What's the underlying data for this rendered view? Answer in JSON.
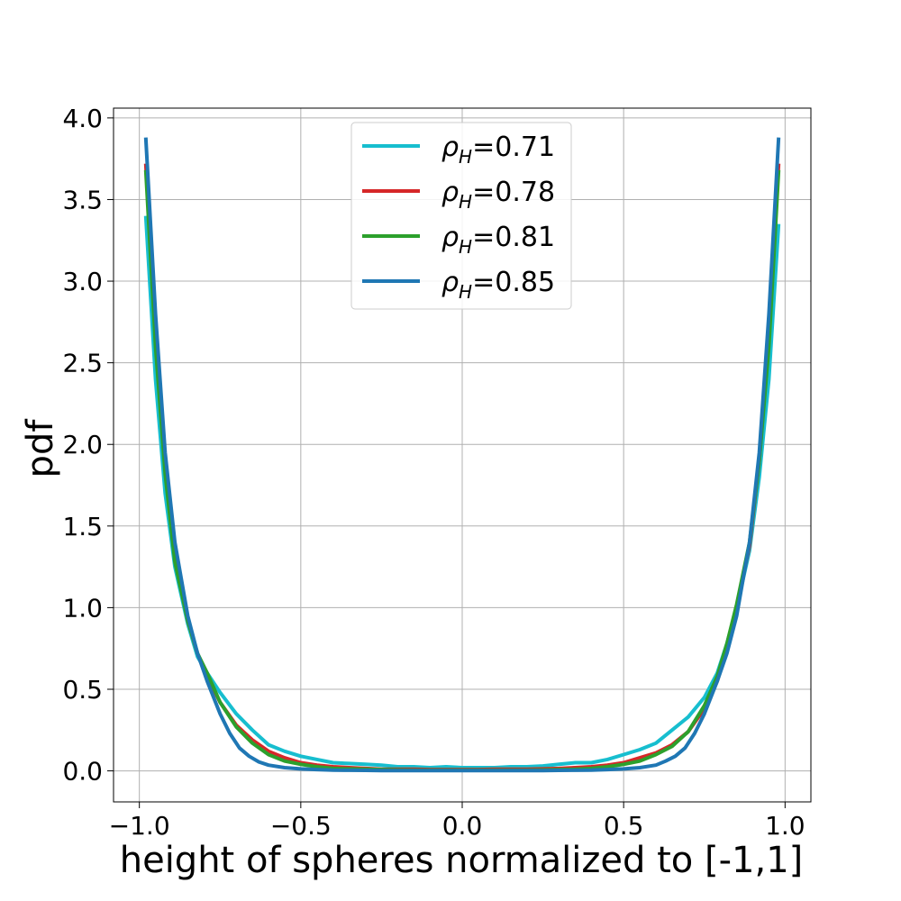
{
  "chart_data": {
    "type": "line",
    "xlabel": "height of spheres normalized to [-1,1]",
    "ylabel": "pdf",
    "xlim": [
      -1.08,
      1.08
    ],
    "ylim": [
      -0.19,
      4.06
    ],
    "xticks": [
      -1.0,
      -0.5,
      0.0,
      0.5,
      1.0
    ],
    "xtick_labels": [
      "−1.0",
      "−0.5",
      "0.0",
      "0.5",
      "1.0"
    ],
    "yticks": [
      0.0,
      0.5,
      1.0,
      1.5,
      2.0,
      2.5,
      3.0,
      3.5,
      4.0
    ],
    "ytick_labels": [
      "0.0",
      "0.5",
      "1.0",
      "1.5",
      "2.0",
      "2.5",
      "3.0",
      "3.5",
      "4.0"
    ],
    "grid": true,
    "legend_position": "top-center",
    "series": [
      {
        "name": "=0.71",
        "symbol": "ρ",
        "subscript": "H",
        "color": "#17becf",
        "x": [
          -0.98,
          -0.95,
          -0.92,
          -0.89,
          -0.85,
          -0.82,
          -0.79,
          -0.75,
          -0.7,
          -0.65,
          -0.6,
          -0.55,
          -0.5,
          -0.45,
          -0.4,
          -0.35,
          -0.3,
          -0.25,
          -0.2,
          -0.15,
          -0.1,
          -0.05,
          0.0,
          0.05,
          0.1,
          0.15,
          0.2,
          0.25,
          0.3,
          0.35,
          0.4,
          0.45,
          0.5,
          0.55,
          0.6,
          0.65,
          0.7,
          0.75,
          0.79,
          0.82,
          0.85,
          0.89,
          0.92,
          0.95,
          0.98
        ],
        "y": [
          3.4,
          2.4,
          1.7,
          1.25,
          0.9,
          0.7,
          0.6,
          0.48,
          0.35,
          0.25,
          0.16,
          0.12,
          0.09,
          0.07,
          0.05,
          0.045,
          0.04,
          0.035,
          0.025,
          0.025,
          0.02,
          0.025,
          0.02,
          0.02,
          0.02,
          0.025,
          0.025,
          0.03,
          0.04,
          0.05,
          0.05,
          0.07,
          0.1,
          0.13,
          0.17,
          0.25,
          0.33,
          0.45,
          0.6,
          0.78,
          1.0,
          1.35,
          1.8,
          2.4,
          3.35
        ]
      },
      {
        "name": "=0.78",
        "symbol": "ρ",
        "subscript": "H",
        "color": "#d62728",
        "x": [
          -0.98,
          -0.95,
          -0.92,
          -0.89,
          -0.85,
          -0.82,
          -0.79,
          -0.75,
          -0.7,
          -0.65,
          -0.6,
          -0.55,
          -0.5,
          -0.45,
          -0.4,
          -0.35,
          -0.3,
          -0.25,
          -0.2,
          -0.15,
          -0.1,
          -0.05,
          0.0,
          0.05,
          0.1,
          0.15,
          0.2,
          0.25,
          0.3,
          0.35,
          0.4,
          0.45,
          0.5,
          0.55,
          0.6,
          0.65,
          0.7,
          0.75,
          0.79,
          0.82,
          0.85,
          0.89,
          0.92,
          0.95,
          0.98
        ],
        "y": [
          3.72,
          2.65,
          1.85,
          1.3,
          0.92,
          0.72,
          0.58,
          0.42,
          0.28,
          0.19,
          0.12,
          0.08,
          0.05,
          0.035,
          0.025,
          0.02,
          0.015,
          0.01,
          0.01,
          0.01,
          0.008,
          0.008,
          0.008,
          0.008,
          0.01,
          0.01,
          0.01,
          0.012,
          0.015,
          0.02,
          0.025,
          0.035,
          0.05,
          0.08,
          0.11,
          0.16,
          0.24,
          0.38,
          0.55,
          0.75,
          1.0,
          1.38,
          1.9,
          2.65,
          3.72
        ]
      },
      {
        "name": "=0.81",
        "symbol": "ρ",
        "subscript": "H",
        "color": "#2ca02c",
        "x": [
          -0.98,
          -0.95,
          -0.92,
          -0.89,
          -0.85,
          -0.82,
          -0.79,
          -0.75,
          -0.7,
          -0.65,
          -0.6,
          -0.55,
          -0.5,
          -0.45,
          -0.4,
          -0.35,
          -0.3,
          -0.25,
          -0.2,
          -0.15,
          -0.1,
          -0.05,
          0.0,
          0.05,
          0.1,
          0.15,
          0.2,
          0.25,
          0.3,
          0.35,
          0.4,
          0.45,
          0.5,
          0.55,
          0.6,
          0.65,
          0.7,
          0.75,
          0.79,
          0.82,
          0.85,
          0.89,
          0.92,
          0.95,
          0.98
        ],
        "y": [
          3.68,
          2.6,
          1.82,
          1.28,
          0.92,
          0.72,
          0.6,
          0.42,
          0.27,
          0.17,
          0.1,
          0.06,
          0.04,
          0.025,
          0.015,
          0.012,
          0.01,
          0.008,
          0.006,
          0.005,
          0.005,
          0.005,
          0.005,
          0.005,
          0.005,
          0.005,
          0.005,
          0.006,
          0.008,
          0.01,
          0.015,
          0.025,
          0.04,
          0.06,
          0.1,
          0.15,
          0.24,
          0.4,
          0.58,
          0.78,
          1.02,
          1.4,
          1.9,
          2.6,
          3.68
        ]
      },
      {
        "name": "=0.85",
        "symbol": "ρ",
        "subscript": "H",
        "color": "#1f77b4",
        "x": [
          -0.98,
          -0.95,
          -0.92,
          -0.89,
          -0.85,
          -0.82,
          -0.79,
          -0.75,
          -0.72,
          -0.69,
          -0.66,
          -0.63,
          -0.6,
          -0.55,
          -0.5,
          -0.45,
          -0.4,
          -0.35,
          -0.3,
          -0.25,
          -0.2,
          -0.15,
          -0.1,
          -0.05,
          0.0,
          0.05,
          0.1,
          0.15,
          0.2,
          0.25,
          0.3,
          0.35,
          0.4,
          0.45,
          0.5,
          0.55,
          0.6,
          0.63,
          0.66,
          0.69,
          0.72,
          0.75,
          0.79,
          0.82,
          0.85,
          0.89,
          0.92,
          0.95,
          0.98
        ],
        "y": [
          3.88,
          2.8,
          1.95,
          1.4,
          0.95,
          0.72,
          0.55,
          0.35,
          0.23,
          0.14,
          0.09,
          0.055,
          0.035,
          0.02,
          0.012,
          0.008,
          0.005,
          0.004,
          0.003,
          0.002,
          0.002,
          0.002,
          0.002,
          0.002,
          0.002,
          0.002,
          0.002,
          0.002,
          0.002,
          0.002,
          0.003,
          0.004,
          0.005,
          0.008,
          0.012,
          0.02,
          0.035,
          0.06,
          0.09,
          0.14,
          0.23,
          0.35,
          0.55,
          0.72,
          0.95,
          1.4,
          1.95,
          2.8,
          3.88
        ]
      }
    ]
  }
}
